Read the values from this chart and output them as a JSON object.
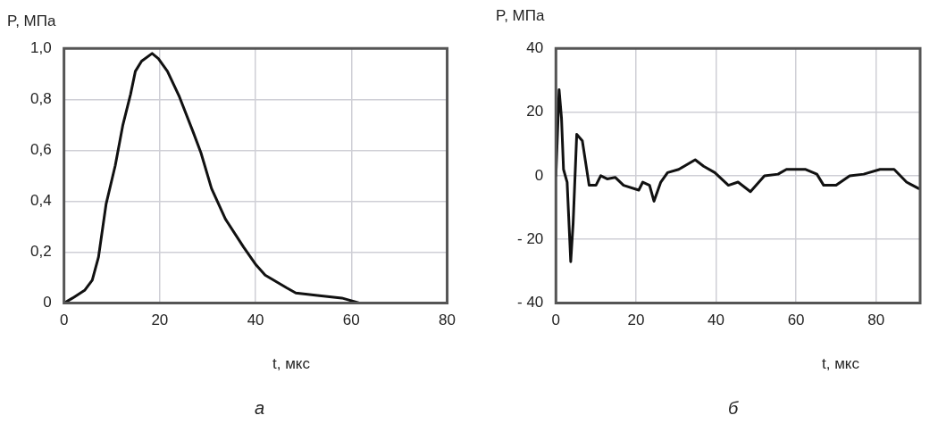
{
  "chart_data": [
    {
      "type": "line",
      "title": "а",
      "xlabel": "t, мкс",
      "ylabel": "P, МПа",
      "xlim": [
        0,
        80
      ],
      "xticks": [
        0,
        20,
        40,
        60,
        80
      ],
      "ylim": [
        0,
        1
      ],
      "yticks": [
        {
          "value": 0,
          "label": "0"
        },
        {
          "value": 0.2,
          "label": "0,2"
        },
        {
          "value": 0.4,
          "label": "0,4"
        },
        {
          "value": 0.6,
          "label": "0,6"
        },
        {
          "value": 0.8,
          "label": "0,8"
        },
        {
          "value": 1,
          "label": "1,0"
        }
      ],
      "grid": true,
      "series": [
        {
          "color": "#111111",
          "x": [
            0,
            1.8,
            4.3,
            5.9,
            7.2,
            8.8,
            10.7,
            12.3,
            13.9,
            14.9,
            16.2,
            18.4,
            19.7,
            21.6,
            24.1,
            27,
            28.6,
            30.8,
            33.7,
            37.5,
            40.1,
            42,
            46.5,
            48.4,
            52.9,
            58,
            61.8,
            63.7
          ],
          "values": [
            0,
            0.02,
            0.05,
            0.09,
            0.18,
            0.39,
            0.54,
            0.7,
            0.82,
            0.91,
            0.95,
            0.98,
            0.96,
            0.91,
            0.81,
            0.67,
            0.59,
            0.45,
            0.33,
            0.22,
            0.15,
            0.11,
            0.06,
            0.04,
            0.03,
            0.02,
            0,
            0
          ]
        }
      ]
    },
    {
      "type": "line",
      "title": "б",
      "xlabel": "t, мкс",
      "ylabel": "P, МПа",
      "xlim": [
        0,
        91
      ],
      "xticks": [
        0,
        20,
        40,
        60,
        80
      ],
      "ylim": [
        -40,
        40
      ],
      "yticks": [
        {
          "value": -40,
          "label": "- 40"
        },
        {
          "value": -20,
          "label": "- 20"
        },
        0,
        20,
        40
      ],
      "grid": true,
      "series": [
        {
          "color": "#111111",
          "x": [
            0,
            0.8,
            1.4,
            1.9,
            2.8,
            3.7,
            4.3,
            5.2,
            6.6,
            8.3,
            10,
            11.2,
            12.8,
            14.8,
            16.9,
            20.7,
            21.7,
            23.4,
            24.5,
            26.2,
            27.9,
            30.7,
            34.8,
            36.9,
            39.7,
            43.1,
            45.5,
            48.6,
            52.1,
            55.5,
            57.6,
            62.4,
            65.2,
            66.9,
            70,
            73.4,
            76.9,
            81,
            84.5,
            87.6,
            90.6
          ],
          "values": [
            0,
            27,
            18,
            2,
            -2,
            -27,
            -15,
            13,
            11,
            -3,
            -3,
            0,
            -1,
            -0.5,
            -3,
            -4.5,
            -2,
            -3,
            -8,
            -2,
            1,
            2,
            5,
            3,
            1,
            -3,
            -2,
            -5,
            0,
            0.5,
            2,
            2,
            0.5,
            -3,
            -3,
            0,
            0.5,
            2,
            2,
            -2,
            -4
          ]
        }
      ]
    }
  ]
}
